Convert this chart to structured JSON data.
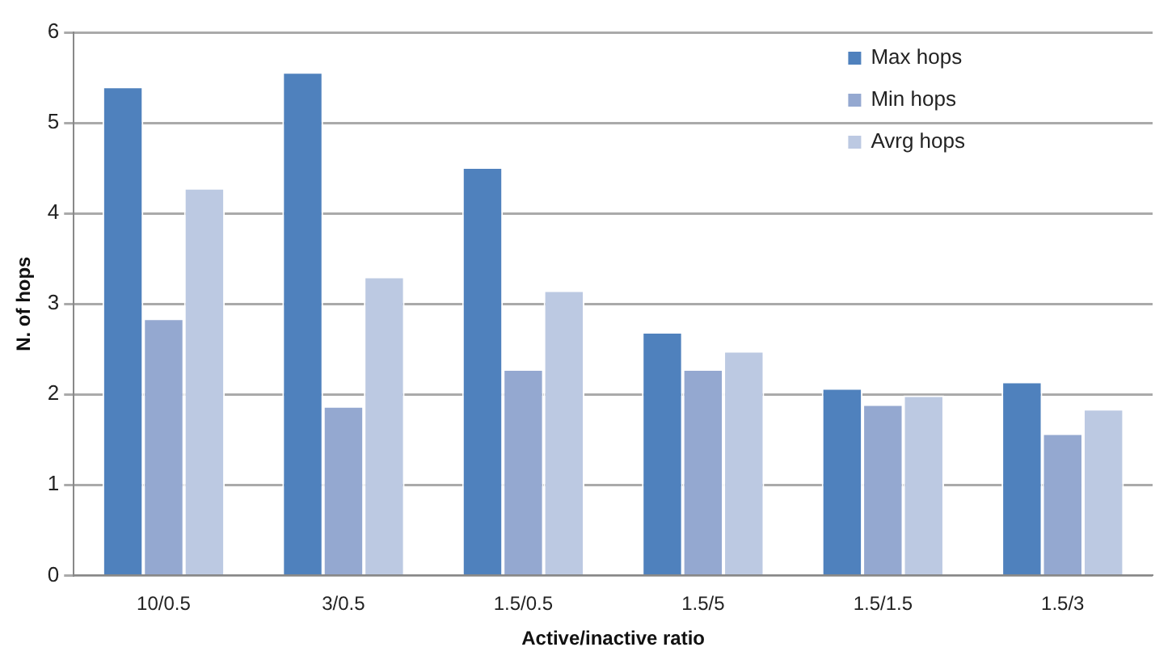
{
  "chart_data": {
    "type": "bar",
    "xlabel": "Active/inactive ratio",
    "ylabel": "N. of hops",
    "categories": [
      "10/0.5",
      "3/0.5",
      "1.5/0.5",
      "1.5/5",
      "1.5/1.5",
      "1.5/3"
    ],
    "series": [
      {
        "name": "Max hops",
        "color": "#4f81bd",
        "values": [
          5.4,
          5.56,
          4.51,
          2.69,
          2.07,
          2.14
        ]
      },
      {
        "name": "Min hops",
        "color": "#94a8d0",
        "values": [
          2.84,
          1.87,
          2.28,
          2.28,
          1.89,
          1.57
        ]
      },
      {
        "name": "Avrg hops",
        "color": "#bcc9e2",
        "values": [
          4.28,
          3.3,
          3.15,
          2.48,
          1.99,
          1.84
        ]
      }
    ],
    "ylim": [
      0,
      6
    ],
    "yticks": [
      0,
      1,
      2,
      3,
      4,
      5,
      6
    ],
    "grid": "y",
    "legend": "top right"
  }
}
